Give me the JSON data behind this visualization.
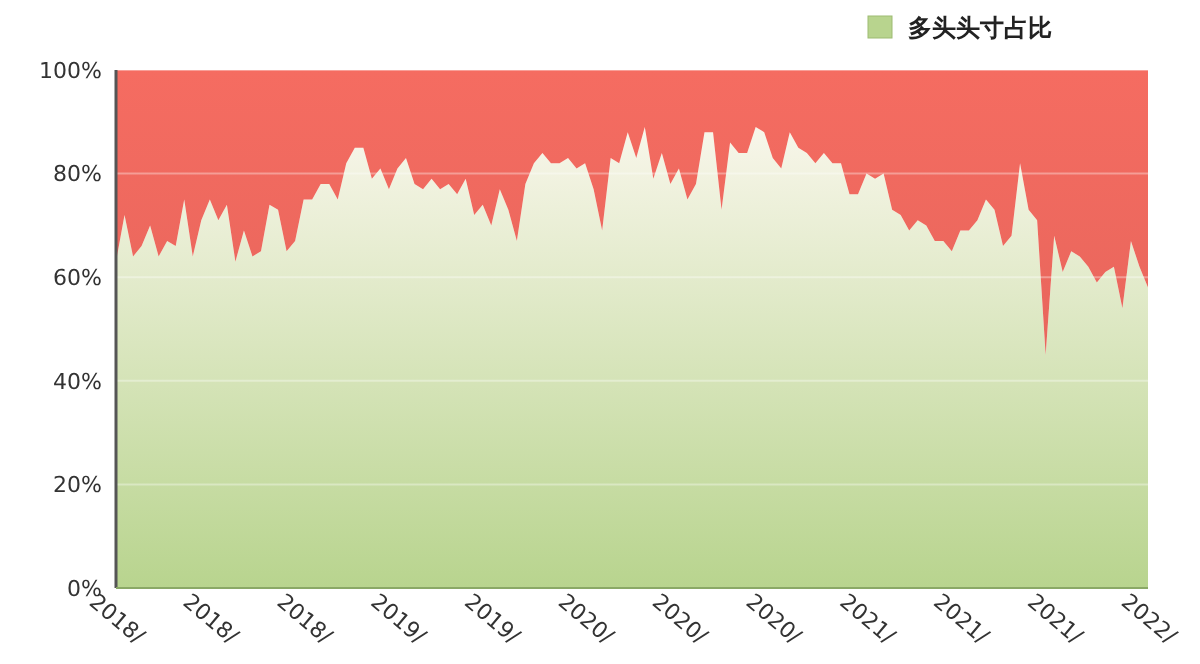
{
  "chart_data": {
    "type": "area",
    "stacked": true,
    "categories": [
      "2018/",
      null,
      null,
      null,
      null,
      null,
      null,
      null,
      null,
      null,
      null,
      "2018/",
      null,
      null,
      null,
      null,
      null,
      null,
      null,
      null,
      null,
      null,
      "2018/",
      null,
      null,
      null,
      null,
      null,
      null,
      null,
      null,
      null,
      null,
      "2019/",
      null,
      null,
      null,
      null,
      null,
      null,
      null,
      null,
      null,
      null,
      "2019/",
      null,
      null,
      null,
      null,
      null,
      null,
      null,
      null,
      null,
      null,
      "2020/",
      null,
      null,
      null,
      null,
      null,
      null,
      null,
      null,
      null,
      null,
      "2020/",
      null,
      null,
      null,
      null,
      null,
      null,
      null,
      null,
      null,
      null,
      "2020/",
      null,
      null,
      null,
      null,
      null,
      null,
      null,
      null,
      null,
      null,
      "2021/",
      null,
      null,
      null,
      null,
      null,
      null,
      null,
      null,
      null,
      null,
      "2021/",
      null,
      null,
      null,
      null,
      null,
      null,
      null,
      null,
      null,
      null,
      "2021/",
      null,
      null,
      null,
      null,
      null,
      null,
      null,
      null,
      null,
      null,
      "2022/"
    ],
    "series": [
      {
        "name": "多头头寸占比",
        "color": "#b8d48e",
        "values": [
          63,
          72,
          64,
          66,
          70,
          64,
          67,
          66,
          75,
          64,
          71,
          75,
          71,
          74,
          63,
          69,
          64,
          65,
          74,
          73,
          65,
          67,
          75,
          75,
          78,
          78,
          75,
          82,
          85,
          85,
          79,
          81,
          77,
          81,
          83,
          78,
          77,
          79,
          77,
          78,
          76,
          79,
          72,
          74,
          70,
          77,
          73,
          67,
          78,
          82,
          84,
          82,
          82,
          83,
          81,
          82,
          77,
          69,
          83,
          82,
          88,
          83,
          89,
          79,
          84,
          78,
          81,
          75,
          78,
          88,
          88,
          73,
          86,
          84,
          84,
          89,
          88,
          83,
          81,
          88,
          85,
          84,
          82,
          84,
          82,
          82,
          76,
          76,
          80,
          79,
          80,
          73,
          72,
          69,
          71,
          70,
          67,
          67,
          65,
          69,
          69,
          71,
          75,
          73,
          66,
          68,
          82,
          73,
          71,
          45,
          68,
          61,
          65,
          64,
          62,
          59,
          61,
          62,
          54,
          67,
          62,
          58
        ]
      },
      {
        "color": "#e8665c",
        "values": [
          37,
          28,
          36,
          34,
          30,
          36,
          33,
          34,
          25,
          36,
          29,
          25,
          29,
          26,
          37,
          31,
          36,
          35,
          26,
          27,
          35,
          33,
          25,
          25,
          22,
          22,
          25,
          18,
          15,
          15,
          21,
          19,
          23,
          19,
          17,
          22,
          23,
          21,
          23,
          22,
          24,
          21,
          28,
          26,
          30,
          23,
          27,
          33,
          22,
          18,
          16,
          18,
          18,
          17,
          19,
          18,
          23,
          31,
          17,
          18,
          12,
          17,
          11,
          21,
          16,
          22,
          19,
          25,
          22,
          12,
          12,
          27,
          14,
          16,
          16,
          11,
          12,
          17,
          19,
          12,
          15,
          16,
          18,
          16,
          18,
          18,
          24,
          24,
          20,
          21,
          20,
          27,
          28,
          31,
          29,
          30,
          33,
          33,
          35,
          31,
          31,
          29,
          25,
          27,
          34,
          32,
          18,
          27,
          29,
          55,
          32,
          39,
          35,
          36,
          38,
          41,
          39,
          38,
          46,
          33,
          38,
          42
        ]
      }
    ],
    "ylim": [
      0,
      100
    ],
    "yticks": [
      {
        "value": 0,
        "label": "0%"
      },
      {
        "value": 20,
        "label": "20%"
      },
      {
        "value": 40,
        "label": "40%"
      },
      {
        "value": 60,
        "label": "60%"
      },
      {
        "value": 80,
        "label": "80%"
      },
      {
        "value": 100,
        "label": "100%"
      }
    ],
    "grid": "y",
    "legend": "top right"
  }
}
